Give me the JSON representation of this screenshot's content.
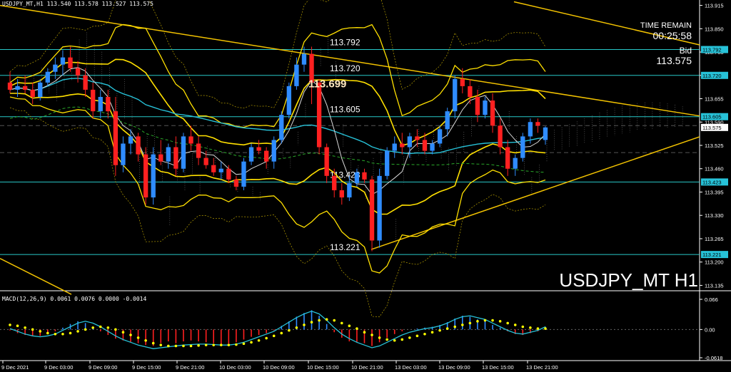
{
  "header": {
    "symbol_line": "USDJPY_MT,H1  113.540 113.578 113.527 113.575"
  },
  "info_panel": {
    "time_remain_label": "TIME REMAIN",
    "time_remain_value": "00:25:58",
    "bid_label": "Bid",
    "bid_value": "113.575"
  },
  "watermark": "USDJPY_MT H1",
  "macd_header": "MACD(12,26,9) 0.0061 0.0076 0.0000 -0.0014",
  "colors": {
    "background": "#000000",
    "bull_candle": "#2f8cff",
    "bear_candle": "#ff2020",
    "level_line": "#28c8c8",
    "bollinger": "#ffe000",
    "trendline": "#f2c200",
    "ma_cyan": "#27c2d8",
    "ma_white": "#d8d8d8",
    "ma_green": "#2aa82a",
    "macd_signal": "#ffff00",
    "macd_line": "#27c2d8",
    "price_tag_bg": "#27c2d8"
  },
  "chart_data": [
    {
      "type": "candlestick",
      "symbol": "USDJPY_MT",
      "timeframe": "H1",
      "ylim": [
        113.12,
        113.93
      ],
      "y_ticks": [
        "113.915",
        "113.850",
        "113.785",
        "113.720",
        "113.655",
        "113.590",
        "113.525",
        "113.460",
        "113.395",
        "113.330",
        "113.265",
        "113.200",
        "113.135"
      ],
      "x_ticks": [
        "9 Dec 2021",
        "9 Dec 03:00",
        "9 Dec 09:00",
        "9 Dec 15:00",
        "9 Dec 21:00",
        "10 Dec 03:00",
        "10 Dec 09:00",
        "10 Dec 15:00",
        "10 Dec 21:00",
        "13 Dec 03:00",
        "13 Dec 09:00",
        "13 Dec 15:00",
        "13 Dec 21:00"
      ],
      "levels": [
        {
          "price": 113.792,
          "label": "113.792"
        },
        {
          "price": 113.72,
          "label": "113.720"
        },
        {
          "price": 113.605,
          "label": "113.605"
        },
        {
          "price": 113.423,
          "label": "113.423"
        },
        {
          "price": 113.221,
          "label": "113.221"
        }
      ],
      "callouts": [
        {
          "price": 113.699,
          "label": "113.699"
        }
      ],
      "right_axis_tags": [
        "113.792",
        "113.720",
        "113.605",
        "113.575",
        "113.423",
        "113.221"
      ],
      "candles": [
        {
          "o": 113.7,
          "h": 113.73,
          "l": 113.67,
          "c": 113.68
        },
        {
          "o": 113.68,
          "h": 113.71,
          "l": 113.66,
          "c": 113.69
        },
        {
          "o": 113.69,
          "h": 113.72,
          "l": 113.67,
          "c": 113.68
        },
        {
          "o": 113.68,
          "h": 113.7,
          "l": 113.64,
          "c": 113.66
        },
        {
          "o": 113.66,
          "h": 113.71,
          "l": 113.65,
          "c": 113.7
        },
        {
          "o": 113.7,
          "h": 113.74,
          "l": 113.69,
          "c": 113.73
        },
        {
          "o": 113.73,
          "h": 113.77,
          "l": 113.71,
          "c": 113.75
        },
        {
          "o": 113.75,
          "h": 113.79,
          "l": 113.72,
          "c": 113.77
        },
        {
          "o": 113.77,
          "h": 113.8,
          "l": 113.73,
          "c": 113.74
        },
        {
          "o": 113.74,
          "h": 113.76,
          "l": 113.7,
          "c": 113.72
        },
        {
          "o": 113.72,
          "h": 113.74,
          "l": 113.66,
          "c": 113.68
        },
        {
          "o": 113.68,
          "h": 113.7,
          "l": 113.6,
          "c": 113.62
        },
        {
          "o": 113.62,
          "h": 113.68,
          "l": 113.6,
          "c": 113.66
        },
        {
          "o": 113.66,
          "h": 113.68,
          "l": 113.6,
          "c": 113.62
        },
        {
          "o": 113.62,
          "h": 113.66,
          "l": 113.44,
          "c": 113.47
        },
        {
          "o": 113.47,
          "h": 113.55,
          "l": 113.45,
          "c": 113.53
        },
        {
          "o": 113.53,
          "h": 113.57,
          "l": 113.5,
          "c": 113.55
        },
        {
          "o": 113.55,
          "h": 113.56,
          "l": 113.48,
          "c": 113.5
        },
        {
          "o": 113.5,
          "h": 113.52,
          "l": 113.36,
          "c": 113.38
        },
        {
          "o": 113.38,
          "h": 113.52,
          "l": 113.36,
          "c": 113.5
        },
        {
          "o": 113.5,
          "h": 113.54,
          "l": 113.47,
          "c": 113.48
        },
        {
          "o": 113.48,
          "h": 113.53,
          "l": 113.46,
          "c": 113.52
        },
        {
          "o": 113.52,
          "h": 113.55,
          "l": 113.44,
          "c": 113.46
        },
        {
          "o": 113.46,
          "h": 113.56,
          "l": 113.45,
          "c": 113.55
        },
        {
          "o": 113.55,
          "h": 113.58,
          "l": 113.51,
          "c": 113.53
        },
        {
          "o": 113.53,
          "h": 113.55,
          "l": 113.47,
          "c": 113.49
        },
        {
          "o": 113.49,
          "h": 113.51,
          "l": 113.46,
          "c": 113.47
        },
        {
          "o": 113.47,
          "h": 113.49,
          "l": 113.44,
          "c": 113.45
        },
        {
          "o": 113.45,
          "h": 113.48,
          "l": 113.43,
          "c": 113.46
        },
        {
          "o": 113.46,
          "h": 113.47,
          "l": 113.42,
          "c": 113.43
        },
        {
          "o": 113.43,
          "h": 113.44,
          "l": 113.4,
          "c": 113.41
        },
        {
          "o": 113.41,
          "h": 113.49,
          "l": 113.4,
          "c": 113.48
        },
        {
          "o": 113.48,
          "h": 113.53,
          "l": 113.47,
          "c": 113.52
        },
        {
          "o": 113.52,
          "h": 113.54,
          "l": 113.5,
          "c": 113.51
        },
        {
          "o": 113.51,
          "h": 113.52,
          "l": 113.46,
          "c": 113.48
        },
        {
          "o": 113.48,
          "h": 113.55,
          "l": 113.46,
          "c": 113.54
        },
        {
          "o": 113.54,
          "h": 113.62,
          "l": 113.53,
          "c": 113.61
        },
        {
          "o": 113.61,
          "h": 113.7,
          "l": 113.6,
          "c": 113.69
        },
        {
          "o": 113.69,
          "h": 113.77,
          "l": 113.68,
          "c": 113.75
        },
        {
          "o": 113.75,
          "h": 113.8,
          "l": 113.73,
          "c": 113.78
        },
        {
          "o": 113.78,
          "h": 113.8,
          "l": 113.64,
          "c": 113.7
        },
        {
          "o": 113.7,
          "h": 113.71,
          "l": 113.5,
          "c": 113.52
        },
        {
          "o": 113.52,
          "h": 113.53,
          "l": 113.42,
          "c": 113.44
        },
        {
          "o": 113.44,
          "h": 113.46,
          "l": 113.38,
          "c": 113.4
        },
        {
          "o": 113.4,
          "h": 113.42,
          "l": 113.36,
          "c": 113.38
        },
        {
          "o": 113.38,
          "h": 113.44,
          "l": 113.37,
          "c": 113.42
        },
        {
          "o": 113.42,
          "h": 113.46,
          "l": 113.41,
          "c": 113.45
        },
        {
          "o": 113.45,
          "h": 113.46,
          "l": 113.42,
          "c": 113.43
        },
        {
          "o": 113.43,
          "h": 113.44,
          "l": 113.23,
          "c": 113.26
        },
        {
          "o": 113.26,
          "h": 113.46,
          "l": 113.24,
          "c": 113.44
        },
        {
          "o": 113.44,
          "h": 113.52,
          "l": 113.43,
          "c": 113.51
        },
        {
          "o": 113.51,
          "h": 113.55,
          "l": 113.49,
          "c": 113.53
        },
        {
          "o": 113.53,
          "h": 113.56,
          "l": 113.5,
          "c": 113.52
        },
        {
          "o": 113.52,
          "h": 113.56,
          "l": 113.49,
          "c": 113.55
        },
        {
          "o": 113.55,
          "h": 113.57,
          "l": 113.52,
          "c": 113.54
        },
        {
          "o": 113.54,
          "h": 113.56,
          "l": 113.5,
          "c": 113.51
        },
        {
          "o": 113.51,
          "h": 113.54,
          "l": 113.5,
          "c": 113.53
        },
        {
          "o": 113.53,
          "h": 113.58,
          "l": 113.52,
          "c": 113.57
        },
        {
          "o": 113.57,
          "h": 113.63,
          "l": 113.55,
          "c": 113.62
        },
        {
          "o": 113.62,
          "h": 113.72,
          "l": 113.6,
          "c": 113.71
        },
        {
          "o": 113.71,
          "h": 113.74,
          "l": 113.67,
          "c": 113.69
        },
        {
          "o": 113.69,
          "h": 113.71,
          "l": 113.64,
          "c": 113.66
        },
        {
          "o": 113.66,
          "h": 113.68,
          "l": 113.59,
          "c": 113.61
        },
        {
          "o": 113.61,
          "h": 113.66,
          "l": 113.6,
          "c": 113.65
        },
        {
          "o": 113.65,
          "h": 113.67,
          "l": 113.56,
          "c": 113.58
        },
        {
          "o": 113.58,
          "h": 113.6,
          "l": 113.5,
          "c": 113.52
        },
        {
          "o": 113.52,
          "h": 113.54,
          "l": 113.44,
          "c": 113.46
        },
        {
          "o": 113.46,
          "h": 113.5,
          "l": 113.44,
          "c": 113.49
        },
        {
          "o": 113.49,
          "h": 113.56,
          "l": 113.48,
          "c": 113.55
        },
        {
          "o": 113.55,
          "h": 113.6,
          "l": 113.53,
          "c": 113.59
        },
        {
          "o": 113.59,
          "h": 113.6,
          "l": 113.56,
          "c": 113.58
        },
        {
          "o": 113.54,
          "h": 113.578,
          "l": 113.527,
          "c": 113.575
        }
      ]
    },
    {
      "type": "macd",
      "title": "MACD(12,26,9)",
      "ylim": [
        -0.0618,
        0.066
      ],
      "y_ticks": [
        "0.066",
        "0.00",
        "-0.0618"
      ],
      "histogram": [
        -0.002,
        -0.008,
        -0.012,
        -0.015,
        -0.014,
        -0.01,
        -0.004,
        0.004,
        0.012,
        0.018,
        0.014,
        0.006,
        -0.004,
        -0.012,
        -0.02,
        -0.024,
        -0.028,
        -0.03,
        -0.034,
        -0.036,
        -0.03,
        -0.026,
        -0.03,
        -0.026,
        -0.024,
        -0.026,
        -0.028,
        -0.03,
        -0.032,
        -0.031,
        -0.028,
        -0.022,
        -0.016,
        -0.012,
        -0.008,
        -0.002,
        0.008,
        0.018,
        0.028,
        0.036,
        0.042,
        0.03,
        0.012,
        -0.006,
        -0.018,
        -0.026,
        -0.028,
        -0.03,
        -0.036,
        -0.028,
        -0.018,
        -0.01,
        -0.004,
        0.0,
        0.002,
        0.004,
        0.006,
        0.01,
        0.016,
        0.024,
        0.03,
        0.028,
        0.022,
        0.018,
        0.01,
        0.004,
        -0.004,
        -0.01,
        -0.012,
        -0.008,
        -0.004,
        0.006
      ],
      "macd_line": [
        0.002,
        -0.004,
        -0.01,
        -0.014,
        -0.016,
        -0.014,
        -0.01,
        -0.002,
        0.006,
        0.014,
        0.018,
        0.014,
        0.006,
        -0.004,
        -0.014,
        -0.022,
        -0.028,
        -0.034,
        -0.038,
        -0.042,
        -0.04,
        -0.038,
        -0.036,
        -0.034,
        -0.033,
        -0.032,
        -0.032,
        -0.033,
        -0.034,
        -0.034,
        -0.032,
        -0.028,
        -0.022,
        -0.016,
        -0.01,
        -0.004,
        0.006,
        0.016,
        0.026,
        0.034,
        0.04,
        0.034,
        0.02,
        0.004,
        -0.01,
        -0.02,
        -0.028,
        -0.034,
        -0.04,
        -0.036,
        -0.028,
        -0.02,
        -0.012,
        -0.006,
        -0.002,
        0.002,
        0.004,
        0.008,
        0.014,
        0.022,
        0.028,
        0.03,
        0.026,
        0.022,
        0.014,
        0.006,
        -0.002,
        -0.008,
        -0.01,
        -0.006,
        -0.002,
        0.006
      ],
      "signal_line": [
        0.01,
        0.008,
        0.004,
        0.0,
        -0.004,
        -0.008,
        -0.01,
        -0.01,
        -0.008,
        -0.004,
        0.0,
        0.004,
        0.006,
        0.004,
        0.0,
        -0.006,
        -0.012,
        -0.018,
        -0.024,
        -0.03,
        -0.034,
        -0.036,
        -0.036,
        -0.036,
        -0.036,
        -0.035,
        -0.034,
        -0.034,
        -0.034,
        -0.034,
        -0.033,
        -0.031,
        -0.028,
        -0.024,
        -0.019,
        -0.014,
        -0.008,
        -0.002,
        0.004,
        0.01,
        0.016,
        0.02,
        0.022,
        0.02,
        0.014,
        0.008,
        0.002,
        -0.006,
        -0.012,
        -0.018,
        -0.022,
        -0.024,
        -0.022,
        -0.018,
        -0.014,
        -0.01,
        -0.006,
        -0.002,
        0.002,
        0.006,
        0.01,
        0.014,
        0.018,
        0.02,
        0.02,
        0.018,
        0.014,
        0.01,
        0.006,
        0.004,
        0.002,
        0.002
      ]
    }
  ]
}
